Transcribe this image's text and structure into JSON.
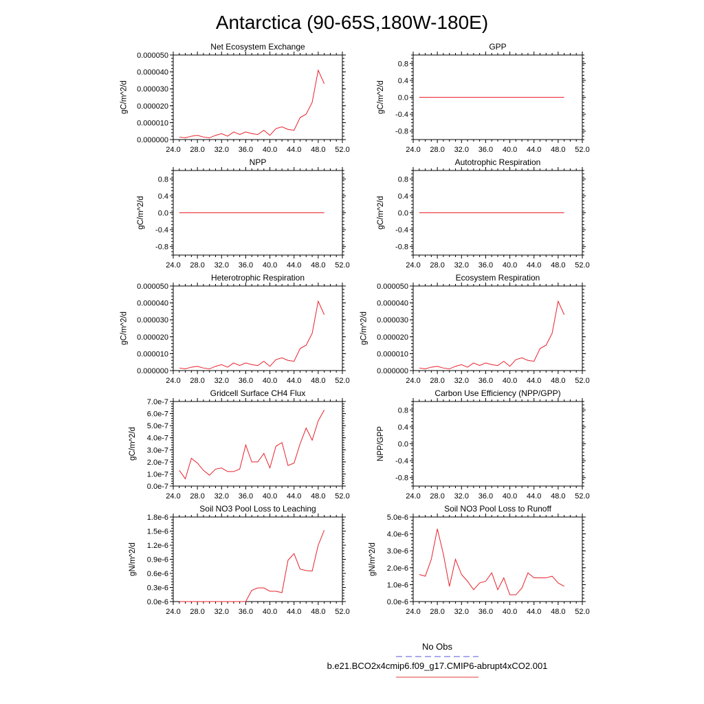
{
  "title": "Antarctica (90-65S,180W-180E)",
  "legend": {
    "items": [
      {
        "label": "No Obs",
        "color": "#5555dd",
        "dash": "dashed"
      },
      {
        "label": "b.e21.BCO2x4cmip6.f09_g17.CMIP6-abrupt4xCO2.001",
        "color": "#e8393b",
        "dash": "solid"
      }
    ]
  },
  "line_color": "#e8202a",
  "chart_data": [
    {
      "type": "line",
      "title": "Net Ecosystem Exchange",
      "ylabel": "gC/m^2/d",
      "xlim": [
        24,
        52
      ],
      "ylim": [
        0,
        5e-05
      ],
      "xticks": [
        24,
        28,
        32,
        36,
        40,
        44,
        48,
        52
      ],
      "xtick_labels": [
        "24.0",
        "28.0",
        "32.0",
        "36.0",
        "40.0",
        "44.0",
        "48.0",
        "52.0"
      ],
      "yticks": [
        0,
        1e-05,
        2e-05,
        3e-05,
        4e-05,
        5e-05
      ],
      "ytick_labels": [
        "0.000000",
        "0.000010",
        "0.000020",
        "0.000030",
        "0.000040",
        "0.000050"
      ],
      "x": [
        25,
        26,
        27,
        28,
        29,
        30,
        31,
        32,
        33,
        34,
        35,
        36,
        37,
        38,
        39,
        40,
        41,
        42,
        43,
        44,
        45,
        46,
        47,
        48,
        49
      ],
      "y": [
        1.5e-06,
        1e-06,
        2e-06,
        2.5e-06,
        1.5e-06,
        1e-06,
        2.5e-06,
        3.5e-06,
        2e-06,
        4.5e-06,
        3e-06,
        4.5e-06,
        3.5e-06,
        3e-06,
        5.5e-06,
        2.5e-06,
        6.5e-06,
        7.5e-06,
        6e-06,
        5.5e-06,
        1.3e-05,
        1.5e-05,
        2.2e-05,
        4.1e-05,
        3.3e-05
      ]
    },
    {
      "type": "line",
      "title": "GPP",
      "ylabel": "gC/m^2/d",
      "xlim": [
        24,
        52
      ],
      "ylim": [
        -1,
        1
      ],
      "xticks": [
        24,
        28,
        32,
        36,
        40,
        44,
        48,
        52
      ],
      "xtick_labels": [
        "24.0",
        "28.0",
        "32.0",
        "36.0",
        "40.0",
        "44.0",
        "48.0",
        "52.0"
      ],
      "yticks": [
        -0.8,
        -0.4,
        0,
        0.4,
        0.8
      ],
      "ytick_labels": [
        "-0.8",
        "-0.4",
        "0.0",
        "0.4",
        "0.8"
      ],
      "x": [
        25,
        49
      ],
      "y": [
        0,
        0
      ]
    },
    {
      "type": "line",
      "title": "NPP",
      "ylabel": "gC/m^2/d",
      "xlim": [
        24,
        52
      ],
      "ylim": [
        -1,
        1
      ],
      "xticks": [
        24,
        28,
        32,
        36,
        40,
        44,
        48,
        52
      ],
      "xtick_labels": [
        "24.0",
        "28.0",
        "32.0",
        "36.0",
        "40.0",
        "44.0",
        "48.0",
        "52.0"
      ],
      "yticks": [
        -0.8,
        -0.4,
        0,
        0.4,
        0.8
      ],
      "ytick_labels": [
        "-0.8",
        "-0.4",
        "0.0",
        "0.4",
        "0.8"
      ],
      "x": [
        25,
        49
      ],
      "y": [
        0,
        0
      ]
    },
    {
      "type": "line",
      "title": "Autotrophic Respiration",
      "ylabel": "gC/m^2/d",
      "xlim": [
        24,
        52
      ],
      "ylim": [
        -1,
        1
      ],
      "xticks": [
        24,
        28,
        32,
        36,
        40,
        44,
        48,
        52
      ],
      "xtick_labels": [
        "24.0",
        "28.0",
        "32.0",
        "36.0",
        "40.0",
        "44.0",
        "48.0",
        "52.0"
      ],
      "yticks": [
        -0.8,
        -0.4,
        0,
        0.4,
        0.8
      ],
      "ytick_labels": [
        "-0.8",
        "-0.4",
        "0.0",
        "0.4",
        "0.8"
      ],
      "x": [
        25,
        49
      ],
      "y": [
        0,
        0
      ]
    },
    {
      "type": "line",
      "title": "Heterotrophic Respiration",
      "ylabel": "gC/m^2/d",
      "xlim": [
        24,
        52
      ],
      "ylim": [
        0,
        5e-05
      ],
      "xticks": [
        24,
        28,
        32,
        36,
        40,
        44,
        48,
        52
      ],
      "xtick_labels": [
        "24.0",
        "28.0",
        "32.0",
        "36.0",
        "40.0",
        "44.0",
        "48.0",
        "52.0"
      ],
      "yticks": [
        0,
        1e-05,
        2e-05,
        3e-05,
        4e-05,
        5e-05
      ],
      "ytick_labels": [
        "0.000000",
        "0.000010",
        "0.000020",
        "0.000030",
        "0.000040",
        "0.000050"
      ],
      "x": [
        25,
        26,
        27,
        28,
        29,
        30,
        31,
        32,
        33,
        34,
        35,
        36,
        37,
        38,
        39,
        40,
        41,
        42,
        43,
        44,
        45,
        46,
        47,
        48,
        49
      ],
      "y": [
        1.5e-06,
        1e-06,
        2e-06,
        2.5e-06,
        1.5e-06,
        1e-06,
        2.5e-06,
        3.5e-06,
        2e-06,
        4.5e-06,
        3e-06,
        4.5e-06,
        3.5e-06,
        3e-06,
        5.5e-06,
        2.5e-06,
        6.5e-06,
        7.5e-06,
        6e-06,
        5.5e-06,
        1.3e-05,
        1.5e-05,
        2.2e-05,
        4.1e-05,
        3.3e-05
      ]
    },
    {
      "type": "line",
      "title": "Ecosystem Respiration",
      "ylabel": "gC/m^2/d",
      "xlim": [
        24,
        52
      ],
      "ylim": [
        0,
        5e-05
      ],
      "xticks": [
        24,
        28,
        32,
        36,
        40,
        44,
        48,
        52
      ],
      "xtick_labels": [
        "24.0",
        "28.0",
        "32.0",
        "36.0",
        "40.0",
        "44.0",
        "48.0",
        "52.0"
      ],
      "yticks": [
        0,
        1e-05,
        2e-05,
        3e-05,
        4e-05,
        5e-05
      ],
      "ytick_labels": [
        "0.000000",
        "0.000010",
        "0.000020",
        "0.000030",
        "0.000040",
        "0.000050"
      ],
      "x": [
        25,
        26,
        27,
        28,
        29,
        30,
        31,
        32,
        33,
        34,
        35,
        36,
        37,
        38,
        39,
        40,
        41,
        42,
        43,
        44,
        45,
        46,
        47,
        48,
        49
      ],
      "y": [
        1.5e-06,
        1e-06,
        2e-06,
        2.5e-06,
        1.5e-06,
        1e-06,
        2.5e-06,
        3.5e-06,
        2e-06,
        4.5e-06,
        3e-06,
        4.5e-06,
        3.5e-06,
        3e-06,
        5.5e-06,
        2.5e-06,
        6.5e-06,
        7.5e-06,
        6e-06,
        5.5e-06,
        1.3e-05,
        1.5e-05,
        2.2e-05,
        4.1e-05,
        3.3e-05
      ]
    },
    {
      "type": "line",
      "title": "Gridcell Surface CH4 Flux",
      "ylabel": "gC/m^2/d",
      "xlim": [
        24,
        52
      ],
      "ylim": [
        0,
        7e-07
      ],
      "xticks": [
        24,
        28,
        32,
        36,
        40,
        44,
        48,
        52
      ],
      "xtick_labels": [
        "24.0",
        "28.0",
        "32.0",
        "36.0",
        "40.0",
        "44.0",
        "48.0",
        "52.0"
      ],
      "yticks": [
        0,
        1e-07,
        2e-07,
        3e-07,
        4e-07,
        5e-07,
        6e-07,
        7e-07
      ],
      "ytick_labels": [
        "0.0e-7",
        "1.0e-7",
        "2.0e-7",
        "3.0e-7",
        "4.0e-7",
        "5.0e-7",
        "6.0e-7",
        "7.0e-7"
      ],
      "x": [
        25,
        26,
        27,
        28,
        29,
        30,
        31,
        32,
        33,
        34,
        35,
        36,
        37,
        38,
        39,
        40,
        41,
        42,
        43,
        44,
        45,
        46,
        47,
        48,
        49
      ],
      "y": [
        1.3e-07,
        6e-08,
        2.3e-07,
        1.9e-07,
        1.3e-07,
        9e-08,
        1.4e-07,
        1.5e-07,
        1.2e-07,
        1.2e-07,
        1.4e-07,
        3.4e-07,
        2e-07,
        2e-07,
        2.7e-07,
        1.5e-07,
        3.3e-07,
        3.6e-07,
        1.7e-07,
        1.9e-07,
        3.5e-07,
        4.8e-07,
        3.8e-07,
        5.4e-07,
        6.3e-07
      ]
    },
    {
      "type": "line",
      "title": "Carbon Use Efficiency (NPP/GPP)",
      "ylabel": "NPP/GPP",
      "xlim": [
        24,
        52
      ],
      "ylim": [
        -1,
        1
      ],
      "xticks": [
        24,
        28,
        32,
        36,
        40,
        44,
        48,
        52
      ],
      "xtick_labels": [
        "24.0",
        "28.0",
        "32.0",
        "36.0",
        "40.0",
        "44.0",
        "48.0",
        "52.0"
      ],
      "yticks": [
        -0.8,
        -0.4,
        0,
        0.4,
        0.8
      ],
      "ytick_labels": [
        "-0.8",
        "-0.4",
        "0.0",
        "0.4",
        "0.8"
      ],
      "x": [],
      "y": []
    },
    {
      "type": "line",
      "title": "Soil NO3 Pool Loss to Leaching",
      "ylabel": "gN/m^2/d",
      "xlim": [
        24,
        52
      ],
      "ylim": [
        0,
        1.8e-06
      ],
      "xticks": [
        24,
        28,
        32,
        36,
        40,
        44,
        48,
        52
      ],
      "xtick_labels": [
        "24.0",
        "28.0",
        "32.0",
        "36.0",
        "40.0",
        "44.0",
        "48.0",
        "52.0"
      ],
      "yticks": [
        0,
        3e-07,
        6e-07,
        9e-07,
        1.2e-06,
        1.5e-06,
        1.8e-06
      ],
      "ytick_labels": [
        "0.0e-6",
        "0.3e-6",
        "0.6e-6",
        "0.9e-6",
        "1.2e-6",
        "1.5e-6",
        "1.8e-6"
      ],
      "x": [
        25,
        26,
        27,
        28,
        29,
        30,
        31,
        32,
        33,
        34,
        35,
        36,
        37,
        38,
        39,
        40,
        41,
        42,
        43,
        44,
        45,
        46,
        47,
        48,
        49
      ],
      "y": [
        0,
        0,
        0,
        0,
        0,
        0,
        0,
        0,
        0,
        0,
        0,
        0,
        2.4e-07,
        2.9e-07,
        2.9e-07,
        2.2e-07,
        2.2e-07,
        1.9e-07,
        8.8e-07,
        1.02e-06,
        6.9e-07,
        6.6e-07,
        6.5e-07,
        1.2e-06,
        1.52e-06
      ]
    },
    {
      "type": "line",
      "title": "Soil NO3 Pool Loss to Runoff",
      "ylabel": "gN/m^2/d",
      "xlim": [
        24,
        52
      ],
      "ylim": [
        0,
        5e-06
      ],
      "xticks": [
        24,
        28,
        32,
        36,
        40,
        44,
        48,
        52
      ],
      "xtick_labels": [
        "24.0",
        "28.0",
        "32.0",
        "36.0",
        "40.0",
        "44.0",
        "48.0",
        "52.0"
      ],
      "yticks": [
        0,
        1e-06,
        2e-06,
        3e-06,
        4e-06,
        5e-06
      ],
      "ytick_labels": [
        "0.0e-6",
        "1.0e-6",
        "2.0e-6",
        "3.0e-6",
        "4.0e-6",
        "5.0e-6"
      ],
      "x": [
        25,
        26,
        27,
        28,
        29,
        30,
        31,
        32,
        33,
        34,
        35,
        36,
        37,
        38,
        39,
        40,
        41,
        42,
        43,
        44,
        45,
        46,
        47,
        48,
        49
      ],
      "y": [
        1.6e-06,
        1.5e-06,
        2.5e-06,
        4.3e-06,
        2.8e-06,
        9e-07,
        2.5e-06,
        1.6e-06,
        1.2e-06,
        7e-07,
        1.1e-06,
        1.2e-06,
        1.7e-06,
        7e-07,
        1.4e-06,
        4e-07,
        4e-07,
        8e-07,
        1.7e-06,
        1.4e-06,
        1.4e-06,
        1.4e-06,
        1.5e-06,
        1.1e-06,
        9e-07
      ]
    }
  ]
}
